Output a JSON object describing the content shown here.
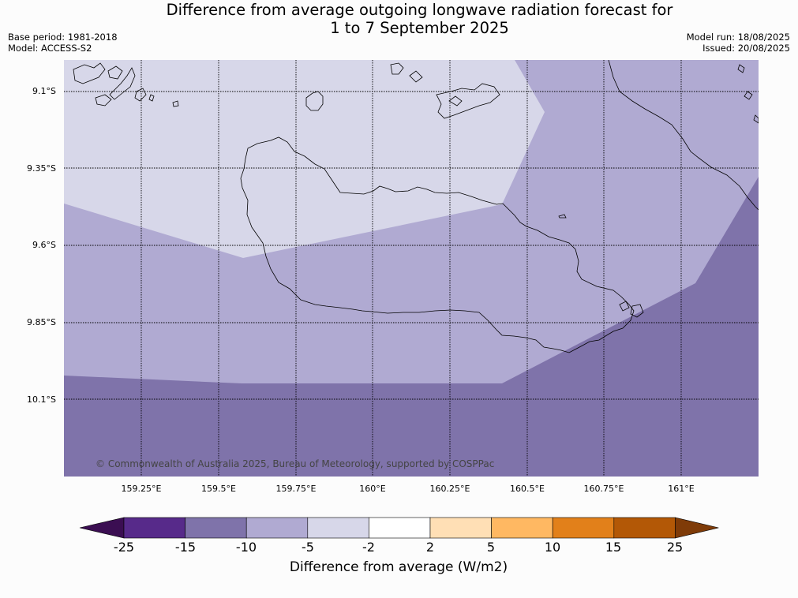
{
  "title_line1": "Difference from average outgoing longwave radiation forecast for",
  "title_line2": "1 to 7 September 2025",
  "meta": {
    "base_period": "Base period: 1981-2018",
    "model": "Model: ACCESS-S2",
    "model_run": "Model run: 18/08/2025",
    "issued": "Issued: 20/08/2025"
  },
  "map": {
    "copyright": "© Commonwealth of Australia 2025, Bureau of Meteorology, supported by COSPPac",
    "lat_labels": [
      "9.1°S",
      "9.35°S",
      "9.6°S",
      "9.85°S",
      "10.1°S"
    ],
    "lon_labels": [
      "159.25°E",
      "159.5°E",
      "159.75°E",
      "160°E",
      "160.25°E",
      "160.5°E",
      "160.75°E",
      "161°E"
    ],
    "region_colors": {
      "minus_2_to_minus_5": "#d7d7e9",
      "minus_5_to_minus_10": "#b0aad2",
      "minus_10_to_minus_15": "#7f73aa"
    }
  },
  "colorbar": {
    "label": "Difference from average (W/m2)",
    "ticks": [
      "-25",
      "-15",
      "-10",
      "-5",
      "-2",
      "2",
      "5",
      "10",
      "15",
      "25"
    ],
    "colors": [
      "#572a8a",
      "#7f73aa",
      "#b0aad2",
      "#d7d7e9",
      "#ffffff",
      "#ffdfb5",
      "#ffb862",
      "#e2801a",
      "#b35806"
    ],
    "under_color": "#3b0e52",
    "over_color": "#7f3b08"
  }
}
